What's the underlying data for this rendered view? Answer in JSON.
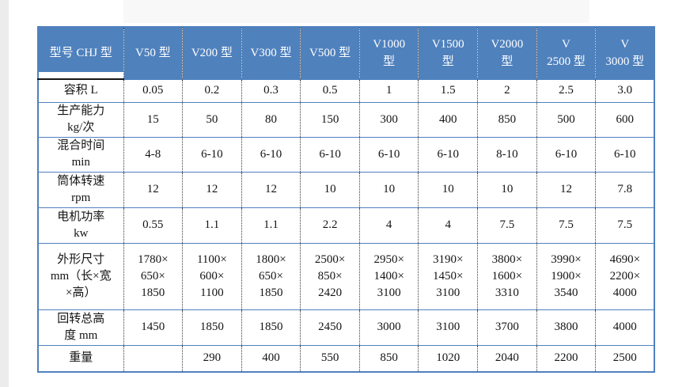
{
  "colors": {
    "accent_blue": "#4f81bd",
    "header_text": "#ffffff",
    "grid_dotted": "#3a3a3a",
    "black_rule": "#161616",
    "page_bg": "#ffffff",
    "left_strip": "#ececec",
    "top_band": "#f8f8f8"
  },
  "table": {
    "columns": [
      "型号 CHJ 型",
      "V50 型",
      "V200 型",
      "V300 型",
      "V500 型",
      "V1000\n型",
      "V1500\n型",
      "V2000\n型",
      "V\n2500 型",
      "V\n3000 型"
    ],
    "rows": [
      {
        "label": "容积 L",
        "values": [
          "0.05",
          "0.2",
          "0.3",
          "0.5",
          "1",
          "1.5",
          "2",
          "2.5",
          "3.0"
        ]
      },
      {
        "label": "生产能力\nkg/次",
        "values": [
          "15",
          "50",
          "80",
          "150",
          "300",
          "400",
          "850",
          "500",
          "600"
        ]
      },
      {
        "label": "混合时间\nmin",
        "values": [
          "4-8",
          "6-10",
          "6-10",
          "6-10",
          "6-10",
          "6-10",
          "8-10",
          "6-10",
          "6-10"
        ]
      },
      {
        "label": "筒体转速\nrpm",
        "values": [
          "12",
          "12",
          "12",
          "10",
          "10",
          "10",
          "10",
          "12",
          "7.8"
        ]
      },
      {
        "label": "电机功率\nkw",
        "values": [
          "0.55",
          "1.1",
          "1.1",
          "2.2",
          "4",
          "4",
          "7.5",
          "7.5",
          "7.5"
        ]
      },
      {
        "label": "外形尺寸\nmm（长×宽\n×高）",
        "values": [
          "1780×\n650×\n1850",
          "1100×\n600×\n1100",
          "1800×\n650×\n1850",
          "2500×\n850×\n2420",
          "2950×\n1400×\n3100",
          "3190×\n1450×\n3100",
          "3800×\n1600×\n3310",
          "3990×\n1900×\n3540",
          "4690×\n2200×\n4000"
        ]
      },
      {
        "label": "回转总高\n度 mm",
        "values": [
          "1450",
          "1850",
          "1850",
          "2450",
          "3000",
          "3100",
          "3700",
          "3800",
          "4000"
        ]
      },
      {
        "label": "重量",
        "values": [
          "",
          "290",
          "400",
          "550",
          "850",
          "1020",
          "2040",
          "2200",
          "2500"
        ]
      }
    ]
  }
}
